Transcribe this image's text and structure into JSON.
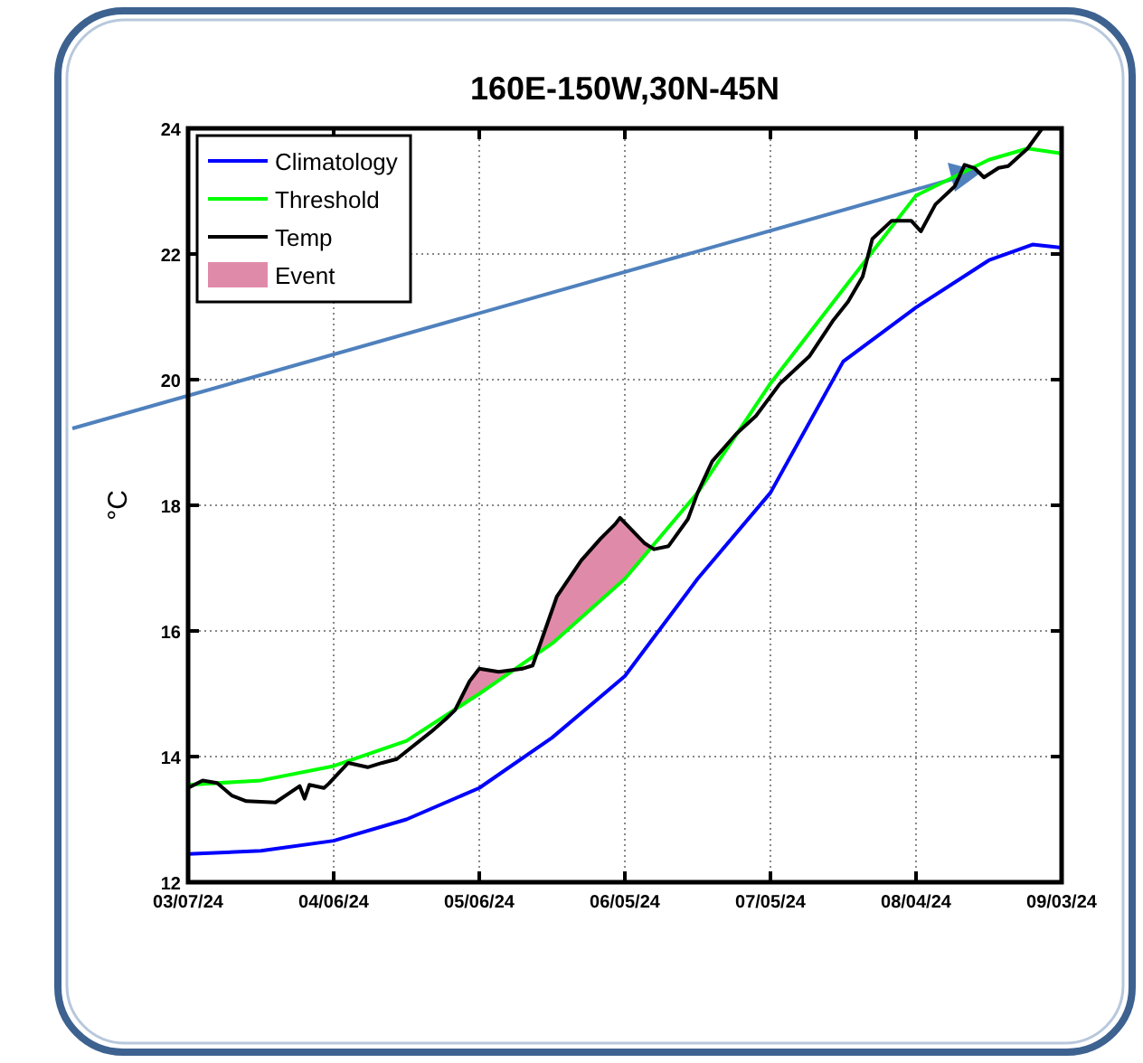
{
  "chart_data": {
    "type": "line",
    "title": "160E-150W,30N-45N",
    "ylabel": "°C",
    "xlim": [
      "2024-03-07",
      "2024-09-03"
    ],
    "ylim": [
      12,
      24
    ],
    "yticks": [
      12,
      14,
      16,
      18,
      20,
      22,
      24
    ],
    "xticks": [
      {
        "value": "2024-03-07",
        "label": "03/07/24"
      },
      {
        "value": "2024-04-06",
        "label": "04/06/24"
      },
      {
        "value": "2024-05-06",
        "label": "05/06/24"
      },
      {
        "value": "2024-06-05",
        "label": "06/05/24"
      },
      {
        "value": "2024-07-05",
        "label": "07/05/24"
      },
      {
        "value": "2024-08-04",
        "label": "08/04/24"
      },
      {
        "value": "2024-09-03",
        "label": "09/03/24"
      }
    ],
    "grid": true,
    "legend": "top left",
    "line_style": "solid",
    "marker": "none",
    "series": [
      {
        "name": "Climatology",
        "color": "#0000ff",
        "x": [
          "2024-03-07",
          "2024-03-22",
          "2024-04-06",
          "2024-04-21",
          "2024-05-06",
          "2024-05-21",
          "2024-06-05",
          "2024-06-20",
          "2024-07-05",
          "2024-07-20",
          "2024-08-04",
          "2024-08-19",
          "2024-08-28",
          "2024-09-03"
        ],
        "values": [
          12.45,
          12.5,
          12.66,
          13.0,
          13.5,
          14.3,
          15.28,
          16.83,
          18.2,
          20.29,
          21.15,
          21.9,
          22.15,
          22.1
        ]
      },
      {
        "name": "Threshold",
        "color": "#00ff00",
        "x": [
          "2024-03-07",
          "2024-03-22",
          "2024-04-06",
          "2024-04-21",
          "2024-05-06",
          "2024-05-21",
          "2024-06-05",
          "2024-06-20",
          "2024-07-05",
          "2024-07-20",
          "2024-08-04",
          "2024-08-19",
          "2024-08-27",
          "2024-09-03"
        ],
        "values": [
          13.55,
          13.62,
          13.85,
          14.25,
          15.0,
          15.8,
          16.83,
          18.2,
          19.94,
          21.44,
          22.93,
          23.5,
          23.68,
          23.6
        ]
      },
      {
        "name": "Event",
        "type": "area",
        "color": "#e08aaa",
        "x": [
          "2024-05-01",
          "2024-05-04",
          "2024-05-06",
          "2024-05-10",
          "2024-05-15",
          "2024-05-16",
          "2024-05-17",
          "2024-05-22",
          "2024-05-27",
          "2024-05-31",
          "2024-06-03",
          "2024-06-04",
          "2024-06-09",
          "2024-06-11"
        ],
        "values": [
          14.74,
          15.2,
          15.4,
          15.35,
          15.4,
          null,
          15.45,
          16.55,
          17.12,
          17.47,
          17.7,
          17.8,
          17.4,
          17.3
        ]
      },
      {
        "name": "Temp",
        "color": "#000000",
        "x": [
          "2024-03-07",
          "2024-03-10",
          "2024-03-13",
          "2024-03-16",
          "2024-03-19",
          "2024-03-25",
          "2024-03-30",
          "2024-03-31",
          "2024-04-01",
          "2024-04-04",
          "2024-04-05",
          "2024-04-09",
          "2024-04-13",
          "2024-04-16",
          "2024-04-19",
          "2024-04-26",
          "2024-04-29",
          "2024-05-01",
          "2024-05-04",
          "2024-05-06",
          "2024-05-10",
          "2024-05-15",
          "2024-05-17",
          "2024-05-22",
          "2024-05-27",
          "2024-05-31",
          "2024-06-03",
          "2024-06-04",
          "2024-06-09",
          "2024-06-11",
          "2024-06-14",
          "2024-06-18",
          "2024-06-20",
          "2024-06-23",
          "2024-06-28",
          "2024-07-02",
          "2024-07-07",
          "2024-07-13",
          "2024-07-18",
          "2024-07-21",
          "2024-07-24",
          "2024-07-26",
          "2024-07-30",
          "2024-08-03",
          "2024-08-05",
          "2024-08-08",
          "2024-08-12",
          "2024-08-14",
          "2024-08-16",
          "2024-08-18",
          "2024-08-21",
          "2024-08-23",
          "2024-08-27",
          "2024-08-30",
          "2024-09-03"
        ],
        "values": [
          13.5,
          13.62,
          13.58,
          13.38,
          13.29,
          13.27,
          13.53,
          13.33,
          13.55,
          13.5,
          13.57,
          13.9,
          13.83,
          13.9,
          13.96,
          14.39,
          14.59,
          14.74,
          15.2,
          15.4,
          15.35,
          15.4,
          15.45,
          16.55,
          17.12,
          17.47,
          17.7,
          17.8,
          17.4,
          17.3,
          17.35,
          17.78,
          18.2,
          18.7,
          19.14,
          19.42,
          19.94,
          20.37,
          20.95,
          21.24,
          21.64,
          22.24,
          22.53,
          22.53,
          22.36,
          22.79,
          23.08,
          23.42,
          23.37,
          23.22,
          23.37,
          23.4,
          23.68,
          24.0,
          24.0
        ]
      }
    ]
  }
}
